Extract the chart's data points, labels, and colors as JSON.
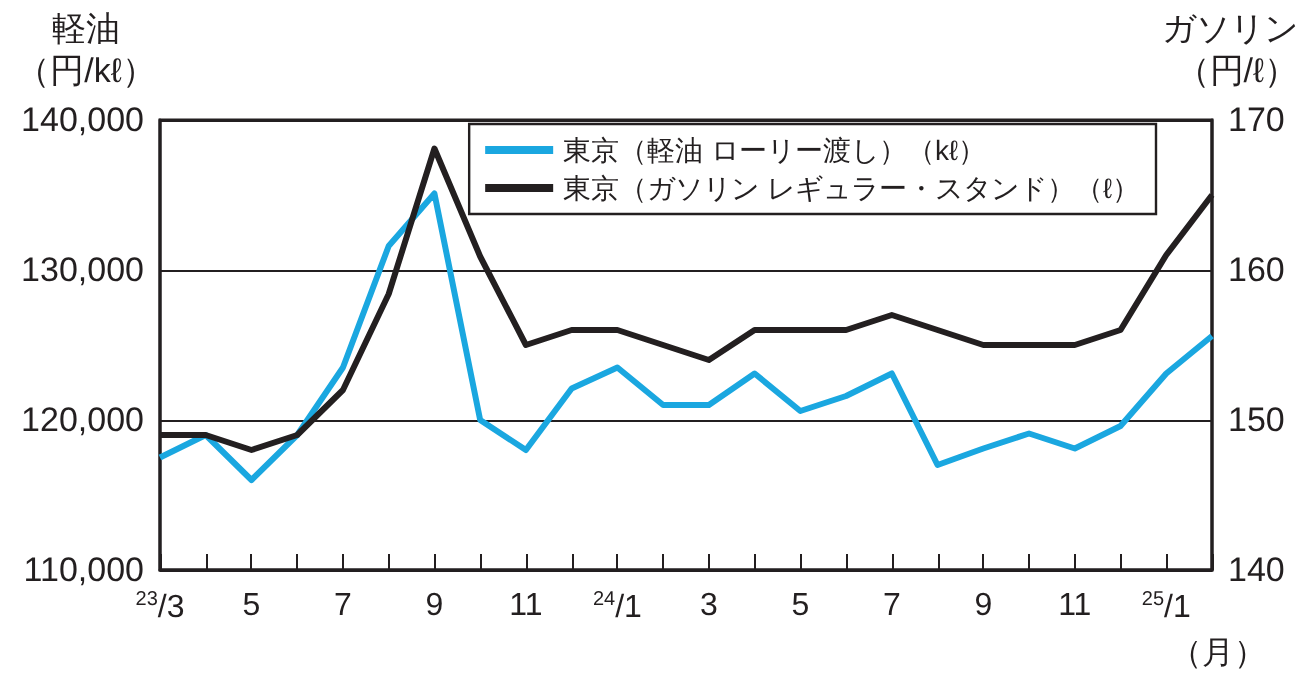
{
  "chart_data": {
    "type": "line",
    "ylabel": "軽油（円/kℓ）",
    "y2label": "ガソリン（円/ℓ）",
    "xlabel": "（月）",
    "categories": [
      "$^{23}$/3",
      null,
      "5",
      null,
      "7",
      null,
      "9",
      null,
      "11",
      null,
      "$^{24}$/1",
      null,
      "3",
      null,
      "5",
      null,
      "7",
      null,
      "9",
      null,
      "11",
      null,
      "$^{25}$/1",
      null
    ],
    "series": [
      {
        "name": "東京（軽油 ローリー渡し）（kℓ）",
        "color": "#1aa7e0",
        "values": [
          117500,
          119000,
          116000,
          119000,
          123500,
          131600,
          135100,
          120000,
          118000,
          122100,
          123500,
          121000,
          121000,
          123100,
          120600,
          121600,
          123100,
          117000,
          118100,
          119100,
          118100,
          119600,
          123100,
          125600
        ]
      },
      {
        "name": "東京（ガソリン レギュラー・スタンド）（ℓ）",
        "color": "#231f20",
        "axis": "y2",
        "values": [
          149,
          149,
          148,
          149,
          152,
          158.4,
          168.1,
          160.9,
          155,
          156,
          156,
          155,
          154,
          156,
          156,
          156,
          157,
          156,
          155,
          155,
          155,
          156,
          161,
          165
        ]
      }
    ],
    "ylim": [
      110000,
      140000
    ],
    "yticks": [
      {
        "value": 110000,
        "label": "110,000"
      },
      {
        "value": 120000,
        "label": "120,000"
      },
      {
        "value": 130000,
        "label": "130,000"
      },
      {
        "value": 140000,
        "label": "140,000"
      }
    ],
    "y2lim": [
      140,
      170
    ],
    "y2ticks": [
      140,
      150,
      160,
      170
    ],
    "grid": "y",
    "legend": "top right",
    "marker": "none"
  }
}
